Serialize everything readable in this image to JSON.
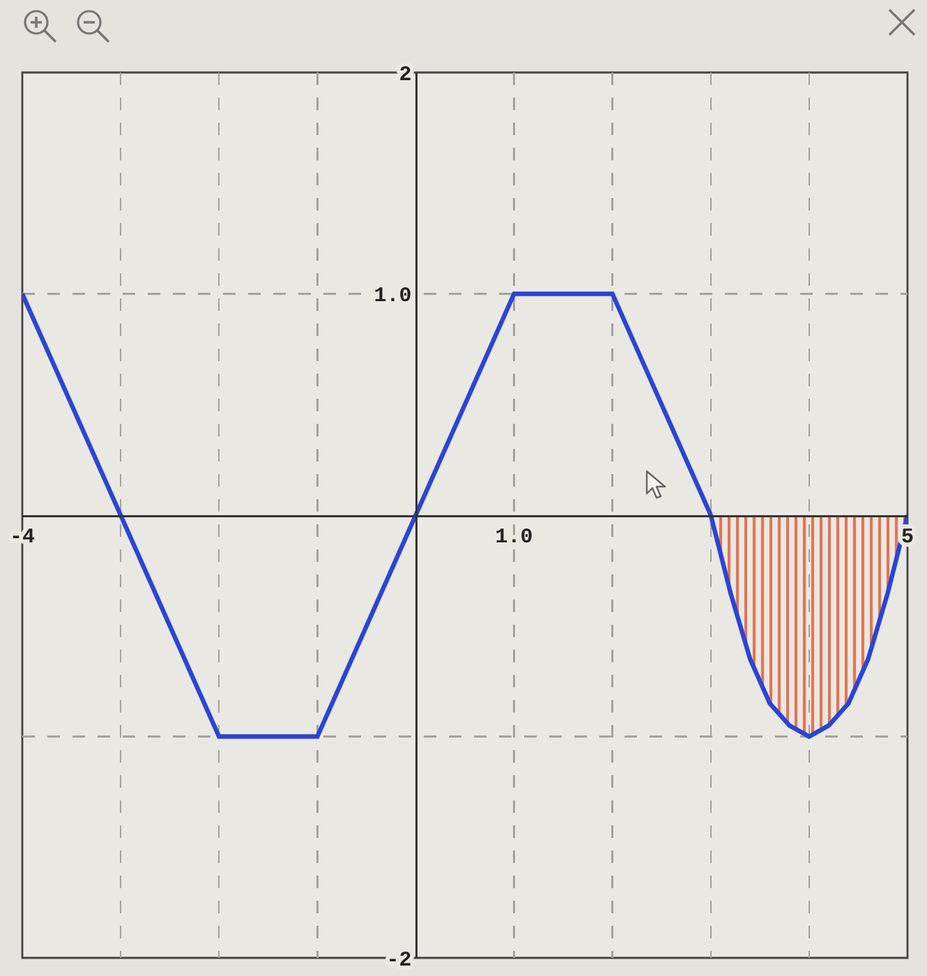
{
  "chart_data": {
    "type": "line",
    "xlim": [
      -4,
      5
    ],
    "ylim": [
      -2,
      2
    ],
    "xticks": [
      {
        "value": -4,
        "label": "-4"
      },
      {
        "value": -3,
        "label": null
      },
      {
        "value": -2,
        "label": null
      },
      {
        "value": -1,
        "label": null
      },
      {
        "value": 1,
        "label": "1.0"
      },
      {
        "value": 2,
        "label": null
      },
      {
        "value": 3,
        "label": null
      },
      {
        "value": 4,
        "label": null
      },
      {
        "value": 5,
        "label": "5"
      }
    ],
    "yticks": [
      {
        "value": -2,
        "label": "-2"
      },
      {
        "value": -1,
        "label": null
      },
      {
        "value": 1,
        "label": "1.0"
      },
      {
        "value": 2,
        "label": "2"
      }
    ],
    "grid": true,
    "marker": "none",
    "line_style": "solid",
    "series": [
      {
        "type": "area",
        "color": "#e27552",
        "x": [
          3,
          3.2,
          3.4,
          3.6,
          3.8,
          4,
          4.2,
          4.4,
          4.6,
          4.8,
          5
        ],
        "values": [
          0,
          -0.35,
          -0.65,
          -0.85,
          -0.95,
          -1,
          -0.95,
          -0.85,
          -0.65,
          -0.35,
          0
        ]
      },
      {
        "color": "#2b44d6",
        "x": [
          -4,
          -2,
          -1,
          1,
          2,
          3,
          3.2,
          3.4,
          3.6,
          3.8,
          4,
          4.2,
          4.4,
          4.6,
          4.8,
          5
        ],
        "values": [
          1,
          -1,
          -1,
          1,
          1,
          0,
          -0.35,
          -0.65,
          -0.85,
          -0.95,
          -1,
          -0.95,
          -0.85,
          -0.65,
          -0.35,
          0
        ]
      }
    ]
  }
}
